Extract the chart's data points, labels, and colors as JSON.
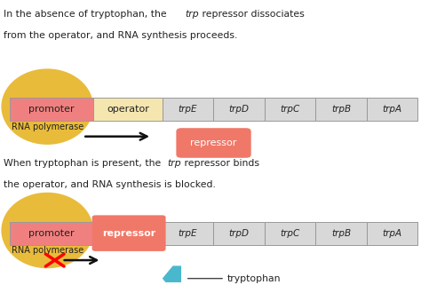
{
  "bg_color": "#ffffff",
  "promoter_color": "#f08080",
  "operator_color": "#f5e6b0",
  "gene_color": "#d8d8d8",
  "gene_border": "#aaaaaa",
  "repressor_color": "#f07868",
  "tryptophan_color": "#4ab8cc",
  "ellipse_color": "#e8b830",
  "genes": [
    "trpE",
    "trpD",
    "trpC",
    "trpB",
    "trpA"
  ],
  "arrow_color": "#111111",
  "text_color": "#222222",
  "top_line1_normal1": "In the absence of tryptophan, the ",
  "top_line1_italic": "trp",
  "top_line1_normal2": " repressor dissociates",
  "top_line2": "from the operator, and RNA synthesis proceeds.",
  "bot_line1_normal1": "When tryptophan is present, the ",
  "bot_line1_italic": "trp",
  "bot_line1_normal2": " repressor binds",
  "bot_line2": "the operator, and RNA synthesis is blocked."
}
